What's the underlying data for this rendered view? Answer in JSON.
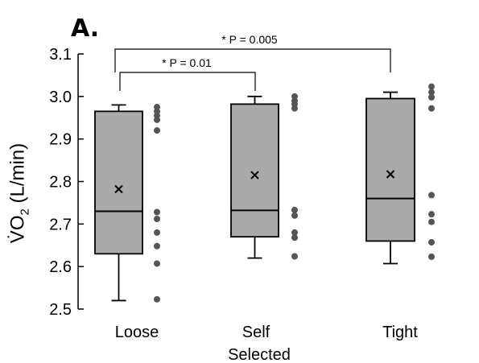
{
  "panel_label": "A.",
  "chart_data": {
    "type": "box",
    "xlabel_line2": "Selected",
    "ylabel": "V̇O",
    "ylabel_sub": "2",
    "ylabel_unit": " (L/min)",
    "ylim": [
      2.5,
      3.1
    ],
    "yticks": [
      "2.5",
      "2.6",
      "2.7",
      "2.8",
      "2.9",
      "3.0",
      "3.1"
    ],
    "categories": [
      "Loose",
      "Self",
      "Tight"
    ],
    "boxes": [
      {
        "name": "Loose",
        "min": 2.52,
        "q1": 2.63,
        "median": 2.73,
        "q3": 2.965,
        "max": 2.98,
        "mean": 2.782,
        "points": [
          2.975,
          2.965,
          2.955,
          2.945,
          2.92,
          2.728,
          2.712,
          2.68,
          2.648,
          2.607,
          2.523
        ]
      },
      {
        "name": "Self",
        "min": 2.62,
        "q1": 2.67,
        "median": 2.732,
        "q3": 2.982,
        "max": 3.0,
        "mean": 2.815,
        "points": [
          3.0,
          2.99,
          2.982,
          2.972,
          2.733,
          2.72,
          2.68,
          2.668,
          2.624
        ]
      },
      {
        "name": "Tight",
        "min": 2.607,
        "q1": 2.66,
        "median": 2.76,
        "q3": 2.995,
        "max": 3.01,
        "mean": 2.817,
        "points": [
          3.023,
          3.01,
          2.998,
          2.972,
          2.768,
          2.723,
          2.705,
          2.657,
          2.623
        ]
      }
    ],
    "annotations": [
      {
        "from": "Loose",
        "to": "Self",
        "text": "* P = 0.01"
      },
      {
        "from": "Loose",
        "to": "Tight",
        "text": "* P = 0.005"
      }
    ],
    "colors": {
      "box_fill": "#aaaaaa",
      "stroke": "#000000",
      "points": "#555555"
    }
  }
}
